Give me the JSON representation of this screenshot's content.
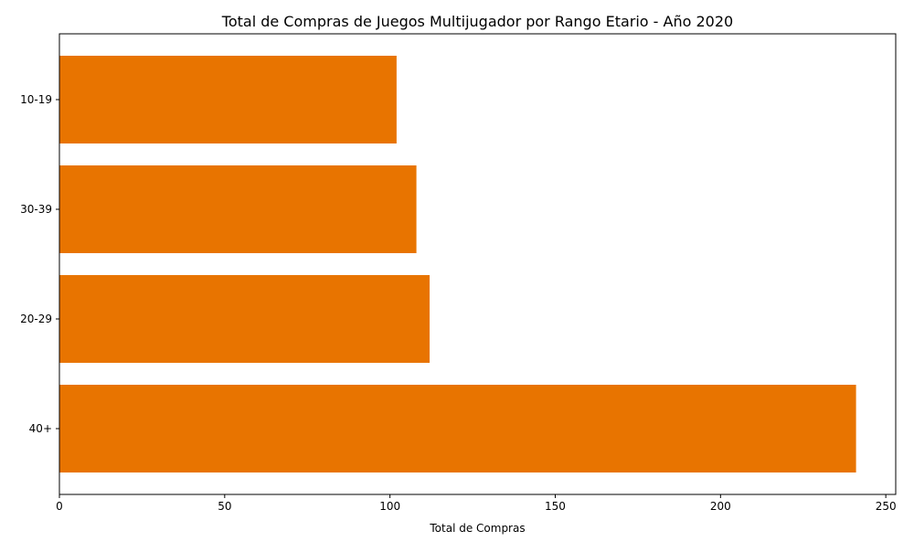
{
  "chart_data": {
    "type": "bar",
    "orientation": "horizontal",
    "title": "Total de Compras de Juegos Multijugador por Rango Etario - Año 2020",
    "xlabel": "Total de Compras",
    "ylabel": "",
    "categories": [
      "10-19",
      "30-39",
      "20-29",
      "40+"
    ],
    "values": [
      102,
      108,
      112,
      241
    ],
    "xlim": [
      0,
      253
    ],
    "xticks": [
      0,
      50,
      100,
      150,
      200,
      250
    ],
    "grid": false,
    "legend": "none",
    "bar_color": "#E87400"
  }
}
